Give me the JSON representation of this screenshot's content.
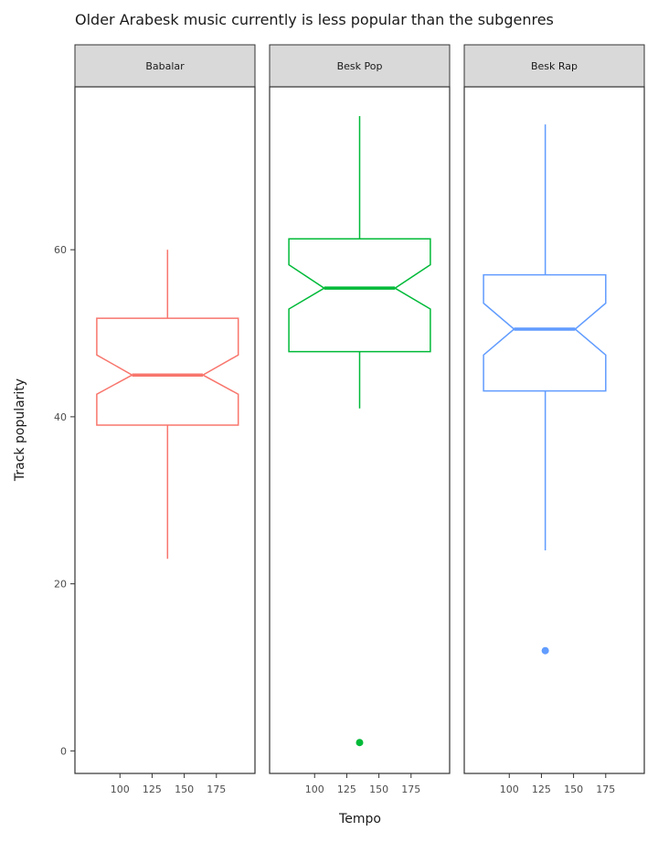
{
  "chart_data": {
    "type": "boxplot",
    "title": "Older Arabesk music currently is less popular than the subgenres",
    "xlabel": "Tempo",
    "ylabel": "Track popularity",
    "x_ticks": [
      100,
      125,
      150,
      175
    ],
    "x_tick_labels": [
      "100",
      "125",
      "150",
      "175"
    ],
    "y_ticks": [
      0,
      20,
      40,
      60
    ],
    "y_tick_labels": [
      "0",
      "20",
      "40",
      "60"
    ],
    "xlim": [
      65,
      205
    ],
    "ylim": [
      -2.7,
      79.5
    ],
    "notched": true,
    "grid": false,
    "legend": "none",
    "facets": [
      {
        "label": "Babalar",
        "color": "#F8766D",
        "x_center": 137,
        "box_x_range": [
          82,
          192
        ],
        "whisker_low": 23,
        "q1": 39,
        "median": 45,
        "q3": 51.8,
        "whisker_high": 60,
        "notch_low": 42.7,
        "notch_high": 47.4,
        "outliers": []
      },
      {
        "label": "Besk Pop",
        "color": "#00BA38",
        "x_center": 135,
        "box_x_range": [
          80,
          190
        ],
        "whisker_low": 41,
        "q1": 47.8,
        "median": 55.4,
        "q3": 61.3,
        "whisker_high": 76,
        "notch_low": 52.9,
        "notch_high": 58.2,
        "outliers": [
          1
        ]
      },
      {
        "label": "Besk Rap",
        "color": "#619CFF",
        "x_center": 128,
        "box_x_range": [
          80,
          175
        ],
        "whisker_low": 24,
        "q1": 43.1,
        "median": 50.5,
        "q3": 57,
        "whisker_high": 75,
        "notch_low": 47.4,
        "notch_high": 53.6,
        "outliers": [
          12
        ]
      }
    ]
  }
}
